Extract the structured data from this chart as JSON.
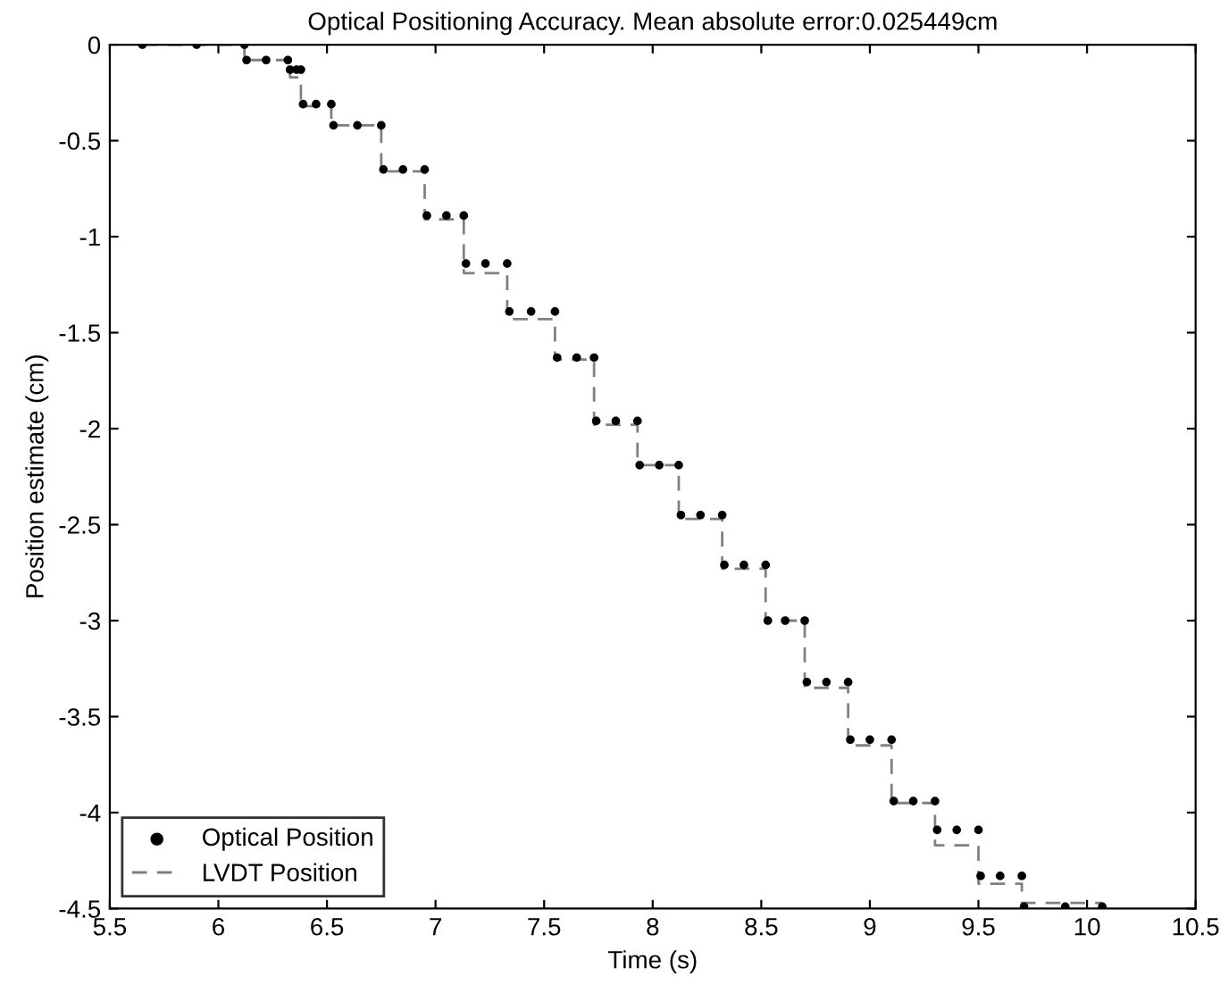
{
  "chart_data": {
    "type": "scatter",
    "title": "Optical Positioning Accuracy. Mean absolute error:0.025449cm",
    "xlabel": "Time (s)",
    "ylabel": "Position estimate (cm)",
    "xlim": [
      5.5,
      10.5
    ],
    "xticks": [
      5.5,
      6,
      6.5,
      7,
      7.5,
      8,
      8.5,
      9,
      9.5,
      10,
      10.5
    ],
    "ylim": [
      -4.5,
      0
    ],
    "yticks": [
      -4.5,
      -4,
      -3.5,
      -3,
      -2.5,
      -2,
      -1.5,
      -1,
      -0.5,
      0
    ],
    "grid": false,
    "legend": "bottom left",
    "series": [
      {
        "name": "Optical Position",
        "marker": "circle",
        "color": "#000000",
        "x": [
          5.65,
          5.9,
          6.12,
          6.13,
          6.22,
          6.32,
          6.33,
          6.36,
          6.38,
          6.39,
          6.45,
          6.52,
          6.53,
          6.64,
          6.75,
          6.76,
          6.85,
          6.95,
          6.96,
          7.05,
          7.13,
          7.14,
          7.23,
          7.33,
          7.34,
          7.44,
          7.55,
          7.56,
          7.65,
          7.73,
          7.74,
          7.83,
          7.93,
          7.94,
          8.03,
          8.12,
          8.13,
          8.22,
          8.32,
          8.33,
          8.42,
          8.52,
          8.53,
          8.61,
          8.7,
          8.71,
          8.8,
          8.9,
          8.91,
          9.0,
          9.1,
          9.11,
          9.2,
          9.3,
          9.31,
          9.4,
          9.5,
          9.51,
          9.6,
          9.7,
          9.71,
          9.9,
          10.07
        ],
        "values": [
          0,
          0,
          0,
          -0.08,
          -0.08,
          -0.08,
          -0.13,
          -0.13,
          -0.13,
          -0.31,
          -0.31,
          -0.31,
          -0.42,
          -0.42,
          -0.42,
          -0.65,
          -0.65,
          -0.65,
          -0.89,
          -0.89,
          -0.89,
          -1.14,
          -1.14,
          -1.14,
          -1.39,
          -1.39,
          -1.39,
          -1.63,
          -1.63,
          -1.63,
          -1.96,
          -1.96,
          -1.96,
          -2.19,
          -2.19,
          -2.19,
          -2.45,
          -2.45,
          -2.45,
          -2.71,
          -2.71,
          -2.71,
          -3.0,
          -3.0,
          -3.0,
          -3.32,
          -3.32,
          -3.32,
          -3.62,
          -3.62,
          -3.62,
          -3.94,
          -3.94,
          -3.94,
          -4.09,
          -4.09,
          -4.09,
          -4.33,
          -4.33,
          -4.33,
          -4.49,
          -4.49,
          -4.49
        ]
      },
      {
        "name": "LVDT Position",
        "type": "step",
        "line_style": "dashed",
        "color": "#808080",
        "x": [
          5.65,
          6.12,
          6.33,
          6.38,
          6.52,
          6.75,
          6.95,
          7.13,
          7.33,
          7.55,
          7.73,
          7.93,
          8.12,
          8.32,
          8.52,
          8.7,
          8.9,
          9.1,
          9.3,
          9.5,
          9.7,
          10.07
        ],
        "values": [
          0,
          -0.08,
          -0.17,
          -0.32,
          -0.42,
          -0.66,
          -0.91,
          -1.19,
          -1.43,
          -1.64,
          -1.98,
          -2.19,
          -2.47,
          -2.73,
          -3.0,
          -3.35,
          -3.65,
          -3.95,
          -4.17,
          -4.37,
          -4.47,
          -4.47
        ]
      }
    ]
  }
}
